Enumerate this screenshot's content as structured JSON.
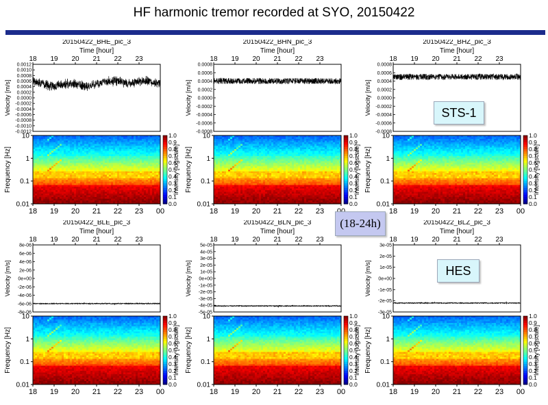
{
  "title": "HF harmonic tremor recorded at SYO, 20150422",
  "callouts": {
    "sts": "STS-1",
    "hes": "HES",
    "time": "(18-24h)"
  },
  "colors": {
    "title_rule": "#1c2c8c",
    "trace": "#000000",
    "callout_bg": "#d8f6fb",
    "callout_time_bg": "#c4c8f0"
  },
  "chart_data": [
    {
      "type": "line",
      "panel": "BHE",
      "title": "20150422_BHE_pic_3",
      "xlabel": "Time [hour]",
      "ylabel": "Velocity [m/s]",
      "x_ticks": [
        "18",
        "19",
        "20",
        "21",
        "22",
        "23"
      ],
      "xlim": [
        18,
        24
      ],
      "y_ticks": [
        "0.0012",
        "0.0010",
        "0.0008",
        "0.0006",
        "0.0004",
        "0.0002",
        "0.0000",
        "-0.0002",
        "-0.0004",
        "-0.0006",
        "-0.0008",
        "-0.0010",
        "-0.0012"
      ],
      "ylim": [
        -0.0012,
        0.0012
      ],
      "series": [
        {
          "x": [
            18.0,
            18.5,
            19.0,
            19.5,
            20.0,
            20.5,
            21.0,
            21.5,
            22.0,
            22.5,
            23.0,
            23.5,
            24.0
          ],
          "values": [
            0.0006,
            0.0005,
            0.0004,
            0.0005,
            0.0005,
            0.0004,
            0.0005,
            0.0006,
            0.0006,
            0.0005,
            0.0006,
            0.0006,
            0.0005
          ]
        }
      ],
      "spectrogram": {
        "type": "heatmap",
        "xlabel": "Time [hour]",
        "ylabel": "Frequency [Hz]",
        "x_ticks": [
          "18",
          "19",
          "20",
          "21",
          "22",
          "23",
          "00"
        ],
        "y_ticks": [
          "10",
          "1",
          "0.1",
          "0.01"
        ],
        "ylim": [
          0.01,
          10
        ],
        "log_y": true,
        "colorbar_label": "Intensity [logscale]",
        "colorbar_ticks": [
          "1.0",
          "0.9",
          "0.8",
          "0.7",
          "0.6",
          "0.5",
          "0.4",
          "0.3",
          "0.2",
          "0.1",
          "0.0"
        ]
      }
    },
    {
      "type": "line",
      "panel": "BHN",
      "title": "20150422_BHN_pic_3",
      "xlabel": "Time [hour]",
      "ylabel": "Velocity [m/s]",
      "x_ticks": [
        "18",
        "19",
        "20",
        "21",
        "22",
        "23"
      ],
      "xlim": [
        18,
        24
      ],
      "y_ticks": [
        "0.0008",
        "0.0006",
        "0.0004",
        "0.0002",
        "0.0000",
        "-0.0002",
        "-0.0004",
        "-0.0006",
        "-0.0008"
      ],
      "ylim": [
        -0.0008,
        0.0008
      ],
      "series": [
        {
          "x": [
            18.0,
            18.5,
            19.0,
            19.5,
            20.0,
            20.5,
            21.0,
            21.5,
            22.0,
            22.5,
            23.0,
            23.5,
            24.0
          ],
          "values": [
            0.0004,
            0.0004,
            0.0004,
            0.0004,
            0.0004,
            0.0004,
            0.0004,
            0.0004,
            0.0004,
            0.0004,
            0.0004,
            0.0004,
            0.0004
          ]
        }
      ],
      "spectrogram": {
        "type": "heatmap",
        "xlabel": "Time [hour]",
        "ylabel": "Frequency [Hz]",
        "x_ticks": [
          "18",
          "19",
          "20",
          "21",
          "22",
          "23",
          "00"
        ],
        "y_ticks": [
          "10",
          "1",
          "0.1",
          "0.01"
        ],
        "ylim": [
          0.01,
          10
        ],
        "log_y": true,
        "colorbar_label": "Intensity [logscale]",
        "colorbar_ticks": [
          "1.0",
          "0.9",
          "0.8",
          "0.7",
          "0.6",
          "0.5",
          "0.4",
          "0.3",
          "0.2",
          "0.1",
          "0.0"
        ]
      }
    },
    {
      "type": "line",
      "panel": "BHZ",
      "title": "20150422_BHZ_pic_3",
      "xlabel": "Time [hour]",
      "ylabel": "Velocity [m/s]",
      "x_ticks": [
        "18",
        "19",
        "20",
        "21",
        "22",
        "23"
      ],
      "xlim": [
        18,
        24
      ],
      "y_ticks": [
        "0.0008",
        "0.0006",
        "0.0004",
        "0.0002",
        "0.0000",
        "-0.0002",
        "-0.0004",
        "-0.0006",
        "-0.0008"
      ],
      "ylim": [
        -0.0008,
        0.0008
      ],
      "series": [
        {
          "x": [
            18.0,
            18.5,
            19.0,
            19.5,
            20.0,
            20.5,
            21.0,
            21.5,
            22.0,
            22.5,
            23.0,
            23.5,
            24.0
          ],
          "values": [
            0.0005,
            0.0005,
            0.0005,
            0.0005,
            0.0005,
            0.0005,
            0.0005,
            0.0005,
            0.0005,
            0.0005,
            0.0005,
            0.0005,
            0.0005
          ]
        }
      ],
      "spectrogram": {
        "type": "heatmap",
        "xlabel": "Time [hour]",
        "ylabel": "Frequency [Hz]",
        "x_ticks": [
          "18",
          "19",
          "20",
          "21",
          "22",
          "23",
          "00"
        ],
        "y_ticks": [
          "10",
          "1",
          "0.1",
          "0.01"
        ],
        "ylim": [
          0.01,
          10
        ],
        "log_y": true,
        "colorbar_label": "Intensity [logscale]",
        "colorbar_ticks": [
          "1.0",
          "0.9",
          "0.8",
          "0.7",
          "0.6",
          "0.5",
          "0.4",
          "0.3",
          "0.2",
          "0.1",
          "0.0"
        ]
      }
    },
    {
      "type": "line",
      "panel": "BLE",
      "title": "20150422_BLE_pic_3",
      "xlabel": "Time [hour]",
      "ylabel": "Velocity [m/s]",
      "x_ticks": [
        "18",
        "19",
        "20",
        "21",
        "22",
        "23"
      ],
      "xlim": [
        18,
        24
      ],
      "y_ticks": [
        "8e-06",
        "6e-06",
        "4e-06",
        "2e-06",
        "0e+00",
        "-2e-06",
        "-4e-06",
        "-6e-06",
        "-8e-06"
      ],
      "ylim": [
        -8e-06,
        8e-06
      ],
      "series": [
        {
          "x": [
            18.0,
            19.0,
            20.0,
            21.0,
            22.0,
            23.0,
            24.0
          ],
          "values": [
            -6e-06,
            -6e-06,
            -6e-06,
            -6e-06,
            -6e-06,
            -6e-06,
            -6e-06
          ]
        }
      ],
      "spectrogram": {
        "type": "heatmap",
        "xlabel": "Time [hour]",
        "ylabel": "Frequency [Hz]",
        "x_ticks": [
          "18",
          "19",
          "20",
          "21",
          "22",
          "23",
          "00"
        ],
        "y_ticks": [
          "10",
          "1",
          "0.1",
          "0.01"
        ],
        "ylim": [
          0.01,
          10
        ],
        "log_y": true,
        "colorbar_label": "Intensity [logscale]",
        "colorbar_ticks": [
          "1.0",
          "0.9",
          "0.8",
          "0.7",
          "0.6",
          "0.5",
          "0.4",
          "0.3",
          "0.2",
          "0.1",
          "0.0"
        ]
      }
    },
    {
      "type": "line",
      "panel": "BLN",
      "title": "20150422_BLN_pic_3",
      "xlabel": "Time [hour]",
      "ylabel": "Velocity [m/s]",
      "x_ticks": [
        "18",
        "19",
        "20",
        "21",
        "22",
        "23"
      ],
      "xlim": [
        18,
        24
      ],
      "y_ticks": [
        "5e-05",
        "4e-05",
        "3e-05",
        "2e-05",
        "1e-05",
        "0e+00",
        "-1e-05",
        "-2e-05",
        "-3e-05",
        "-4e-05",
        "-5e-05"
      ],
      "ylim": [
        -5e-05,
        5e-05
      ],
      "series": [
        {
          "x": [
            18.0,
            19.0,
            20.0,
            21.0,
            22.0,
            23.0,
            24.0
          ],
          "values": [
            -4.1e-05,
            -4.1e-05,
            -4.1e-05,
            -4.1e-05,
            -4.1e-05,
            -4.1e-05,
            -4.1e-05
          ]
        }
      ],
      "spectrogram": {
        "type": "heatmap",
        "xlabel": "Time [hour]",
        "ylabel": "Frequency [Hz]",
        "x_ticks": [
          "18",
          "19",
          "20",
          "21",
          "22",
          "23",
          "00"
        ],
        "y_ticks": [
          "10",
          "1",
          "0.1",
          "0.01"
        ],
        "ylim": [
          0.01,
          10
        ],
        "log_y": true,
        "colorbar_label": "Intensity [logscale]",
        "colorbar_ticks": [
          "1.0",
          "0.9",
          "0.8",
          "0.7",
          "0.6",
          "0.5",
          "0.4",
          "0.3",
          "0.2",
          "0.1",
          "0.0"
        ]
      }
    },
    {
      "type": "line",
      "panel": "BLZ",
      "title": "20150422_BLZ_pic_3",
      "xlabel": "Time [hour]",
      "ylabel": "Velocity [m/s]",
      "x_ticks": [
        "18",
        "19",
        "20",
        "21",
        "22",
        "23"
      ],
      "xlim": [
        18,
        24
      ],
      "y_ticks": [
        "3e-05",
        "2e-05",
        "1e-05",
        "0e+00",
        "-1e-05",
        "-2e-05",
        "-3e-05"
      ],
      "ylim": [
        -3e-05,
        3e-05
      ],
      "series": [
        {
          "x": [
            18.0,
            19.0,
            20.0,
            21.0,
            22.0,
            23.0,
            24.0
          ],
          "values": [
            -2.2e-05,
            -2.2e-05,
            -2.2e-05,
            -2.2e-05,
            -2.2e-05,
            -2.2e-05,
            -2.2e-05
          ]
        }
      ],
      "spectrogram": {
        "type": "heatmap",
        "xlabel": "Time [hour]",
        "ylabel": "Frequency [Hz]",
        "x_ticks": [
          "18",
          "19",
          "20",
          "21",
          "22",
          "23",
          "00"
        ],
        "y_ticks": [
          "10",
          "1",
          "0.1",
          "0.01"
        ],
        "ylim": [
          0.01,
          10
        ],
        "log_y": true,
        "colorbar_label": "Intensity [logscale]",
        "colorbar_ticks": [
          "1.0",
          "0.9",
          "0.8",
          "0.7",
          "0.6",
          "0.5",
          "0.4",
          "0.3",
          "0.2",
          "0.1",
          "0.0"
        ]
      }
    }
  ]
}
